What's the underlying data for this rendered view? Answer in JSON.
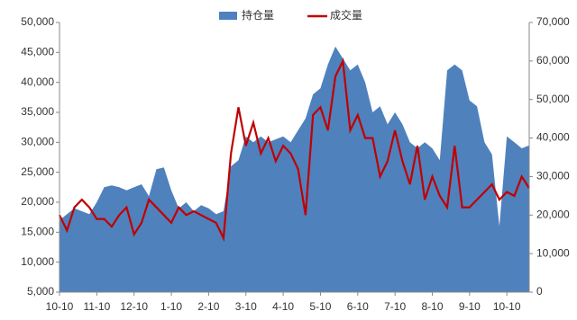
{
  "chart_data": {
    "type": "area-line",
    "categories": [
      "10-10",
      null,
      null,
      null,
      null,
      "11-10",
      null,
      null,
      null,
      null,
      "12-10",
      null,
      null,
      null,
      null,
      "1-10",
      null,
      null,
      null,
      null,
      "2-10",
      null,
      null,
      null,
      null,
      "3-10",
      null,
      null,
      null,
      null,
      "4-10",
      null,
      null,
      null,
      null,
      "5-10",
      null,
      null,
      null,
      null,
      "6-10",
      null,
      null,
      null,
      null,
      "7-10",
      null,
      null,
      null,
      null,
      "8-10",
      null,
      null,
      null,
      null,
      "9-10",
      null,
      null,
      null,
      null,
      "10-10",
      null,
      null,
      null
    ],
    "series": [
      {
        "name": "持仓量",
        "type": "area",
        "color": "#4f81bd",
        "axis": "y",
        "values": [
          17000,
          18000,
          19000,
          18500,
          18000,
          20000,
          22500,
          22800,
          22500,
          22000,
          22500,
          23000,
          21000,
          25500,
          25800,
          22000,
          19000,
          20000,
          18500,
          19500,
          19000,
          18000,
          18500,
          26000,
          27000,
          31000,
          30000,
          31000,
          30000,
          30500,
          31000,
          30000,
          32000,
          34000,
          38000,
          39000,
          43000,
          46000,
          44000,
          42000,
          43000,
          40000,
          35000,
          36000,
          33000,
          35000,
          33000,
          30000,
          29000,
          30000,
          29000,
          27000,
          42000,
          43000,
          42000,
          37000,
          36000,
          30000,
          28000,
          16000,
          31000,
          30000,
          29000,
          29500
        ]
      },
      {
        "name": "成交量",
        "type": "line",
        "color": "#c00000",
        "axis": "y2",
        "values": [
          20000,
          16000,
          22000,
          24000,
          22000,
          19000,
          19000,
          17000,
          20000,
          22000,
          15000,
          18000,
          24000,
          22000,
          20000,
          18000,
          22000,
          20000,
          21000,
          20000,
          19000,
          18000,
          14000,
          36000,
          48000,
          38000,
          44000,
          36000,
          40000,
          34000,
          38000,
          36000,
          32000,
          20000,
          46000,
          48000,
          42000,
          56000,
          60000,
          42000,
          46000,
          40000,
          40000,
          30000,
          34000,
          42000,
          34000,
          28000,
          38000,
          24000,
          30000,
          25000,
          22000,
          38000,
          22000,
          22000,
          24000,
          26000,
          28000,
          24000,
          26000,
          25000,
          30000,
          27000
        ]
      }
    ],
    "ylim": [
      5000,
      50000
    ],
    "yticks": [
      {
        "value": 5000,
        "label": "5,000"
      },
      {
        "value": 10000,
        "label": "10,000"
      },
      {
        "value": 15000,
        "label": "15,000"
      },
      {
        "value": 20000,
        "label": "20,000"
      },
      {
        "value": 25000,
        "label": "25,000"
      },
      {
        "value": 30000,
        "label": "30,000"
      },
      {
        "value": 35000,
        "label": "35,000"
      },
      {
        "value": 40000,
        "label": "40,000"
      },
      {
        "value": 45000,
        "label": "45,000"
      },
      {
        "value": 50000,
        "label": "50,000"
      }
    ],
    "y2lim": [
      0,
      70000
    ],
    "y2ticks": [
      0,
      {
        "value": 10000,
        "label": "10,000"
      },
      {
        "value": 20000,
        "label": "20,000"
      },
      {
        "value": 30000,
        "label": "30,000"
      },
      {
        "value": 40000,
        "label": "40,000"
      },
      {
        "value": 50000,
        "label": "50,000"
      },
      {
        "value": 60000,
        "label": "60,000"
      },
      {
        "value": 70000,
        "label": "70,000"
      }
    ]
  }
}
